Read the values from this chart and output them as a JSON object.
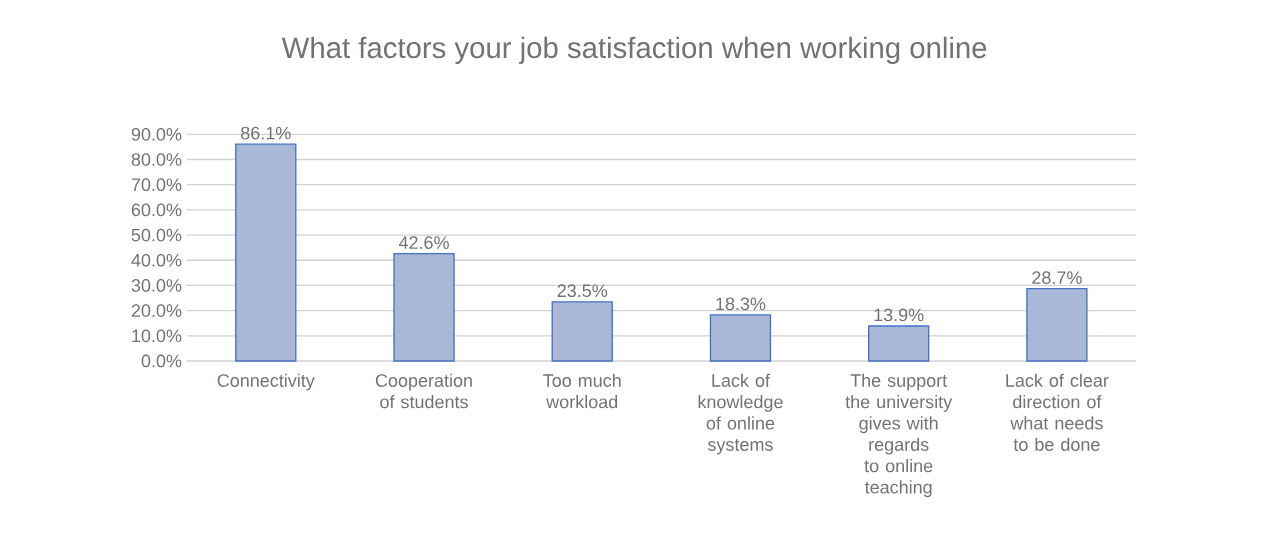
{
  "chart_data": {
    "type": "bar",
    "title": "What factors your job satisfaction when working online",
    "categories": [
      "Connectivity",
      "Cooperation of students",
      "Too much workload",
      "Lack of knowledge of online systems",
      "The support the university gives with regards to online teaching",
      "Lack of clear direction  of what needs to be done"
    ],
    "values": [
      86.1,
      42.6,
      23.5,
      18.3,
      13.9,
      28.7
    ],
    "value_labels": [
      "86.1%",
      "42.6%",
      "23.5%",
      "18.3%",
      "13.9%",
      "28.7%"
    ],
    "color": "#a9b8d6",
    "ylim": [
      0,
      90
    ],
    "yticks": [
      {
        "value": 0,
        "label": "0.0%"
      },
      {
        "value": 10,
        "label": "10.0%"
      },
      {
        "value": 20,
        "label": "20.0%"
      },
      {
        "value": 30,
        "label": "30.0%"
      },
      {
        "value": 40,
        "label": "40.0%"
      },
      {
        "value": 50,
        "label": "50.0%"
      },
      {
        "value": 60,
        "label": "60.0%"
      },
      {
        "value": 70,
        "label": "70.0%"
      },
      {
        "value": 80,
        "label": "80.0%"
      },
      {
        "value": 90,
        "label": "90.0%"
      }
    ],
    "grid": "y"
  }
}
